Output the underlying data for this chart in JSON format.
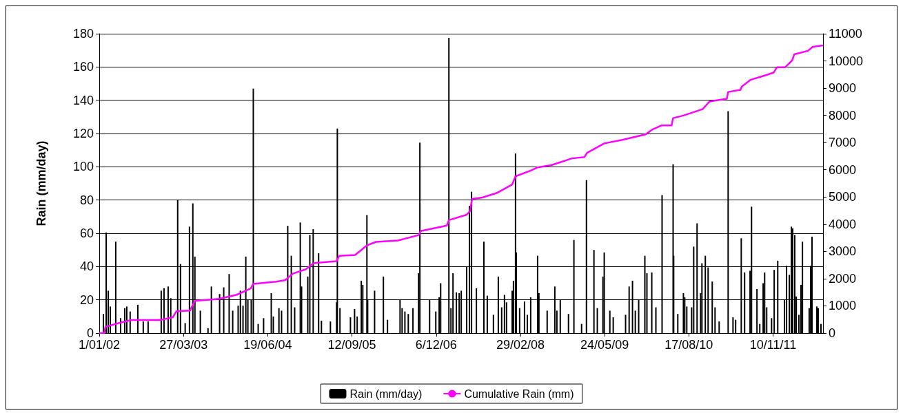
{
  "chart_data": {
    "type": "bar",
    "ylabel": "Rain (mm/day)",
    "legend": "bottom",
    "grid": "y",
    "xlim": [
      "2002-01-01",
      "2012-08-03"
    ],
    "xticks": [
      {
        "value": "2002-01-01",
        "label": "1/01/02"
      },
      {
        "value": "2003-03-27",
        "label": "27/03/03"
      },
      {
        "value": "2004-06-19",
        "label": "19/06/04"
      },
      {
        "value": "2005-09-12",
        "label": "12/09/05"
      },
      {
        "value": "2006-12-06",
        "label": "6/12/06"
      },
      {
        "value": "2008-02-29",
        "label": "29/02/08"
      },
      {
        "value": "2009-05-24",
        "label": "24/05/09"
      },
      {
        "value": "2010-08-17",
        "label": "17/08/10"
      },
      {
        "value": "2011-11-10",
        "label": "10/11/11"
      }
    ],
    "ylim": [
      0,
      180
    ],
    "yticks": [
      0,
      20,
      40,
      60,
      80,
      100,
      120,
      140,
      160,
      180
    ],
    "y2lim": [
      0,
      11000
    ],
    "y2ticks": [
      0,
      1000,
      2000,
      3000,
      4000,
      5000,
      6000,
      7000,
      8000,
      9000,
      10000,
      11000
    ],
    "series": [
      {
        "name": "Rain (mm/day)",
        "color": "#000000",
        "x": [
          "2002-01-23",
          "2002-02-07",
          "2002-02-18",
          "2002-03-01",
          "2002-03-30",
          "2002-04-25",
          "2002-05-17",
          "2002-05-28",
          "2002-06-15",
          "2002-07-26",
          "2002-08-24",
          "2002-09-19",
          "2002-11-28",
          "2002-12-13",
          "2003-01-04",
          "2003-01-18",
          "2003-02-24",
          "2003-03-11",
          "2003-04-05",
          "2003-04-28",
          "2003-05-16",
          "2003-05-27",
          "2003-06-25",
          "2003-08-05",
          "2003-08-23",
          "2003-10-06",
          "2003-10-28",
          "2003-11-26",
          "2003-12-15",
          "2004-01-13",
          "2004-01-25",
          "2004-02-08",
          "2004-02-23",
          "2004-03-05",
          "2004-03-23",
          "2004-04-03",
          "2004-04-29",
          "2004-05-28",
          "2004-07-08",
          "2004-07-19",
          "2004-08-18",
          "2004-09-01",
          "2004-10-04",
          "2004-10-23",
          "2004-11-10",
          "2004-12-10",
          "2004-12-17",
          "2005-01-19",
          "2005-01-30",
          "2005-02-17",
          "2005-03-18",
          "2005-04-02",
          "2005-05-20",
          "2005-06-22",
          "2005-06-26",
          "2005-07-10",
          "2005-09-04",
          "2005-09-26",
          "2005-10-10",
          "2005-11-01",
          "2005-11-09",
          "2005-12-01",
          "2005-12-05",
          "2006-01-11",
          "2006-02-27",
          "2006-03-21",
          "2006-05-27",
          "2006-06-07",
          "2006-06-22",
          "2006-07-10",
          "2006-08-04",
          "2006-09-03",
          "2006-09-10",
          "2006-11-01",
          "2006-12-04",
          "2006-12-22",
          "2006-12-30",
          "2007-02-12",
          "2007-02-23",
          "2007-03-06",
          "2007-03-24",
          "2007-04-08",
          "2007-04-19",
          "2007-05-18",
          "2007-06-02",
          "2007-06-13",
          "2007-07-09",
          "2007-08-18",
          "2007-09-05",
          "2007-10-08",
          "2007-11-03",
          "2007-11-21",
          "2007-12-06",
          "2007-12-17",
          "2008-01-16",
          "2008-01-23",
          "2008-02-03",
          "2008-02-07",
          "2008-02-25",
          "2008-03-22",
          "2008-04-06",
          "2008-04-24",
          "2008-05-31",
          "2008-06-07",
          "2008-07-21",
          "2008-08-31",
          "2008-09-11",
          "2008-09-29",
          "2008-11-12",
          "2008-12-11",
          "2009-01-21",
          "2009-02-16",
          "2009-03-28",
          "2009-04-15",
          "2009-05-15",
          "2009-05-22",
          "2009-06-21",
          "2009-07-09",
          "2009-09-13",
          "2009-10-02",
          "2009-10-20",
          "2009-11-04",
          "2009-11-22",
          "2009-12-25",
          "2010-01-05",
          "2010-01-31",
          "2010-02-22",
          "2010-03-27",
          "2010-05-25",
          "2010-05-28",
          "2010-06-19",
          "2010-07-19",
          "2010-07-26",
          "2010-08-06",
          "2010-09-01",
          "2010-09-12",
          "2010-09-30",
          "2010-10-19",
          "2010-10-26",
          "2010-11-13",
          "2010-11-28",
          "2010-12-20",
          "2011-01-04",
          "2011-01-26",
          "2011-03-15",
          "2011-04-10",
          "2011-04-24",
          "2011-05-24",
          "2011-06-11",
          "2011-07-10",
          "2011-07-18",
          "2011-08-16",
          "2011-08-31",
          "2011-09-18",
          "2011-09-26",
          "2011-10-07",
          "2011-11-02",
          "2011-11-16",
          "2011-12-05",
          "2012-01-10",
          "2012-01-21",
          "2012-02-05",
          "2012-02-16",
          "2012-02-23",
          "2012-03-05",
          "2012-03-13",
          "2012-03-27",
          "2012-04-07",
          "2012-04-15",
          "2012-05-21",
          "2012-05-29",
          "2012-06-05",
          "2012-07-01",
          "2012-07-08",
          "2012-07-23"
        ],
        "values": [
          11.5,
          60.5,
          25.5,
          16,
          55,
          9,
          15,
          16,
          13,
          17,
          7,
          7,
          25.5,
          27,
          28,
          21,
          80,
          41.5,
          6,
          64,
          78,
          46,
          13.5,
          3,
          28,
          23.5,
          27.5,
          35.5,
          13.5,
          16.5,
          25.5,
          16.5,
          46,
          20,
          20,
          147,
          5.5,
          9,
          24,
          10,
          15,
          13.5,
          64.5,
          46.5,
          15.5,
          66.5,
          28,
          34,
          59,
          62.5,
          48,
          7.5,
          7,
          18.5,
          123,
          15,
          9.5,
          14.5,
          10,
          31.5,
          29,
          71,
          20,
          25.5,
          34,
          8,
          20,
          15,
          13,
          11.5,
          15,
          36,
          114.5,
          20,
          13,
          21.5,
          30,
          177.5,
          15,
          36,
          24.5,
          24,
          25.5,
          40,
          76.5,
          85,
          27,
          55,
          22.5,
          11,
          34,
          15.5,
          23,
          18.5,
          25.5,
          31.5,
          108,
          48.5,
          15,
          19,
          11,
          21.5,
          46.5,
          24,
          13.5,
          28,
          13.5,
          20,
          11.5,
          56,
          5.5,
          92,
          50,
          15,
          34,
          48.5,
          13.5,
          9.5,
          11,
          28,
          31.5,
          13.5,
          20,
          46.5,
          36,
          36.5,
          15.5,
          83,
          101.5,
          46.5,
          11.5,
          24,
          21.5,
          16,
          15.5,
          52,
          66,
          24,
          42,
          46.5,
          39.5,
          31,
          15.5,
          7,
          133.5,
          9.5,
          8,
          57,
          36.5,
          37.5,
          76,
          26.5,
          5.5,
          30,
          36.5,
          15.5,
          9,
          38,
          43.5,
          20,
          40.5,
          35,
          64,
          63,
          59,
          22,
          11,
          29,
          55,
          15,
          40.5,
          58,
          16,
          15,
          5.5
        ]
      },
      {
        "name": "Cumulative Rain (mm)",
        "type": "line",
        "axis": "y2",
        "color": "#ff00ff",
        "line_style": "solid",
        "x": [
          "2002-01-01",
          "2002-01-27",
          "2002-02-03",
          "2002-04-21",
          "2002-06-23",
          "2002-11-24",
          "2003-01-29",
          "2003-02-17",
          "2003-05-01",
          "2003-05-27",
          "2003-10-03",
          "2004-01-06",
          "2004-03-20",
          "2004-04-03",
          "2004-08-03",
          "2004-09-19",
          "2004-11-02",
          "2005-01-07",
          "2005-02-20",
          "2005-06-22",
          "2005-07-06",
          "2005-09-29",
          "2005-11-30",
          "2006-01-18",
          "2006-05-15",
          "2006-09-03",
          "2006-09-14",
          "2007-02-01",
          "2007-02-12",
          "2007-05-18",
          "2007-06-05",
          "2007-06-16",
          "2007-08-10",
          "2007-10-30",
          "2008-01-16",
          "2008-02-03",
          "2008-04-24",
          "2008-05-31",
          "2008-08-12",
          "2008-12-01",
          "2009-02-05",
          "2009-02-19",
          "2009-05-22",
          "2009-08-26",
          "2009-12-29",
          "2010-02-03",
          "2010-03-23",
          "2010-05-17",
          "2010-05-25",
          "2010-07-22",
          "2010-10-30",
          "2010-12-05",
          "2011-03-08",
          "2011-03-15",
          "2011-05-20",
          "2011-05-27",
          "2011-07-14",
          "2011-09-15",
          "2011-11-13",
          "2011-12-01",
          "2012-01-14",
          "2012-02-20",
          "2012-03-02",
          "2012-05-14",
          "2012-06-09",
          "2012-08-03"
        ],
        "values": [
          0,
          0,
          230,
          380,
          480,
          480,
          580,
          800,
          830,
          1180,
          1260,
          1410,
          1640,
          1810,
          1890,
          1940,
          2190,
          2340,
          2570,
          2640,
          2840,
          2870,
          3220,
          3350,
          3400,
          3600,
          3750,
          3950,
          4150,
          4350,
          4480,
          4930,
          4980,
          5160,
          5460,
          5760,
          5970,
          6090,
          6170,
          6420,
          6470,
          6620,
          6970,
          7100,
          7300,
          7480,
          7630,
          7630,
          7900,
          8000,
          8230,
          8510,
          8610,
          8860,
          8940,
          9060,
          9310,
          9440,
          9570,
          9770,
          9770,
          10020,
          10240,
          10370,
          10520,
          10570
        ]
      }
    ]
  }
}
